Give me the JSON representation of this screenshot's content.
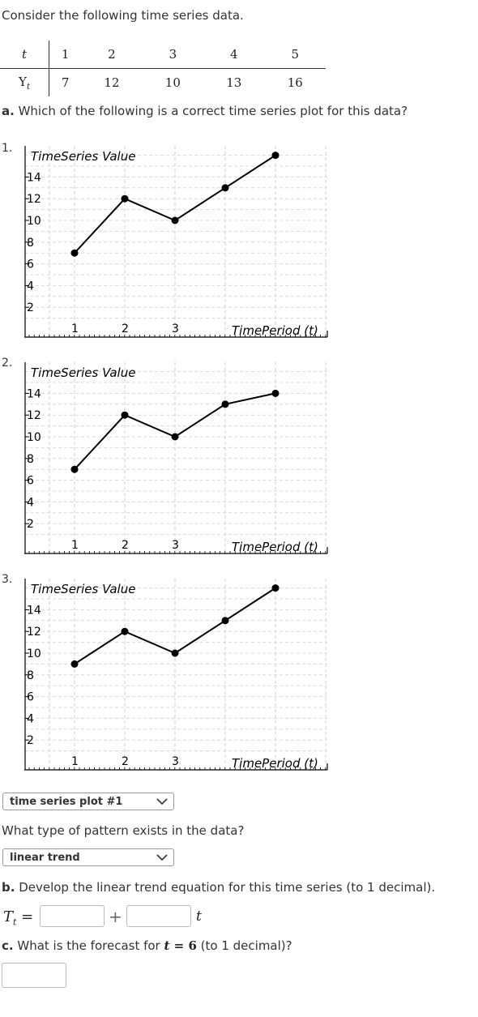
{
  "intro": "Consider the following time series data.",
  "table": {
    "row_t_label": "t",
    "row_y_label": "Y",
    "row_y_sub": "t",
    "t_values": [
      "1",
      "2",
      "3",
      "4",
      "5"
    ],
    "y_values": [
      "7",
      "12",
      "10",
      "13",
      "16"
    ]
  },
  "question_a": {
    "label": "a.",
    "text": " Which of the following is a correct time series plot for this data?"
  },
  "plots": [
    {
      "number": "1.",
      "ylabel": "TimeSeries Value",
      "xlabel": "TimePeriod (t)"
    },
    {
      "number": "2.",
      "ylabel": "TimeSeries Value",
      "xlabel": "TimePeriod (t)"
    },
    {
      "number": "3.",
      "ylabel": "TimeSeries Value",
      "xlabel": "TimePeriod (t)"
    }
  ],
  "chart_data": [
    {
      "type": "line",
      "x": [
        1,
        2,
        3,
        4,
        5
      ],
      "y": [
        7,
        12,
        10,
        13,
        16
      ],
      "yticks": [
        2,
        4,
        6,
        8,
        10,
        12,
        14
      ],
      "xticks": [
        1,
        2,
        3
      ],
      "title": "",
      "ylabel": "TimeSeries Value",
      "xlabel": "TimePeriod (t)",
      "grid": true
    },
    {
      "type": "line",
      "x": [
        1,
        2,
        3,
        4,
        5
      ],
      "y": [
        7,
        12,
        10,
        13,
        14
      ],
      "yticks": [
        2,
        4,
        6,
        8,
        10,
        12,
        14
      ],
      "xticks": [
        1,
        2,
        3
      ],
      "title": "",
      "ylabel": "TimeSeries Value",
      "xlabel": "TimePeriod (t)",
      "grid": true
    },
    {
      "type": "line",
      "x": [
        1,
        2,
        3,
        4,
        5
      ],
      "y": [
        9,
        12,
        10,
        13,
        16
      ],
      "yticks": [
        2,
        4,
        6,
        8,
        10,
        12,
        14
      ],
      "xticks": [
        1,
        2,
        3
      ],
      "title": "",
      "ylabel": "TimeSeries Value",
      "xlabel": "TimePeriod (t)",
      "grid": true
    }
  ],
  "select_plot": {
    "value": "time series plot #1"
  },
  "pattern_question": "What type of pattern exists in the data?",
  "select_pattern": {
    "value": "linear trend"
  },
  "question_b": {
    "label": "b.",
    "text": " Develop the linear trend equation for this time series (to 1 decimal).",
    "eq_lhs": "T",
    "eq_lhs_sub": "t",
    "eq_equals": "=",
    "eq_plus": "+",
    "eq_t": "t"
  },
  "question_c": {
    "label": "c.",
    "text_before": " What is the forecast for ",
    "t_sym": "t",
    "eq_part": " = 6",
    "text_after": " (to 1 decimal)?"
  },
  "colors": {
    "text": "#333333",
    "grid": "#c8c8c8",
    "line": "#000000"
  }
}
